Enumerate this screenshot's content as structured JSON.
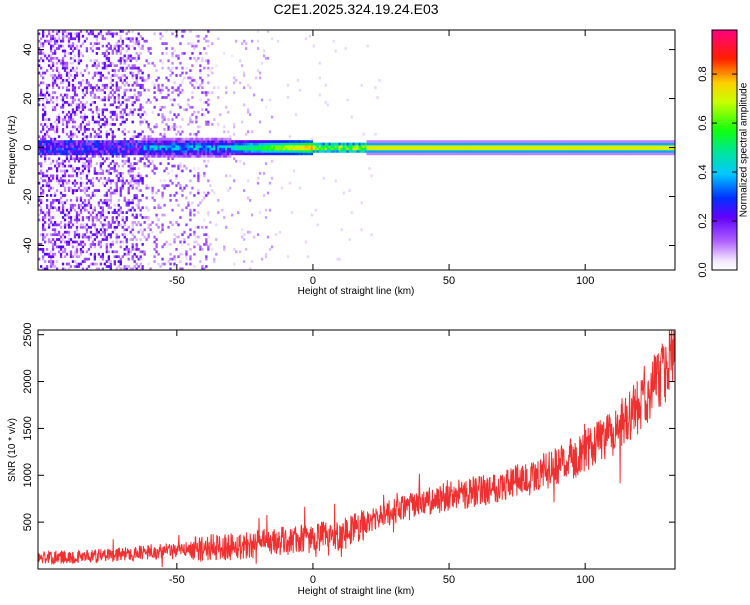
{
  "chart_data": [
    {
      "type": "heatmap",
      "title": "C2E1.2025.324.19.24.E03",
      "xlabel": "Height of straight line (km)",
      "ylabel": "Frequency (Hz)",
      "xlim": [
        -101,
        133
      ],
      "ylim": [
        -50,
        48
      ],
      "xticks": [
        -50,
        0,
        50,
        100
      ],
      "yticks": [
        -40,
        -20,
        0,
        20,
        40
      ],
      "colorbar": {
        "label": "Normalized spectral amplitude",
        "range": [
          0,
          0.98
        ],
        "ticks": [
          0.0,
          0.2,
          0.4,
          0.6,
          0.8
        ],
        "tick_labels": [
          "0.0",
          "0.2",
          "0.4",
          "0.6",
          "0.8"
        ],
        "colormap": "hsv-rainbow (white, violet, blue, cyan, green, yellow, red, magenta)"
      },
      "features": {
        "ridge_center_hz": 0,
        "ridge_peak_amplitude": 0.9,
        "noise_region_km": [
          -101,
          -38
        ],
        "grid": false
      }
    },
    {
      "type": "line",
      "title": "",
      "xlabel": "Height of straight line (km)",
      "ylabel": "SNR (10 * v/v)",
      "xlim": [
        -101,
        133
      ],
      "ylim": [
        0,
        2550
      ],
      "xticks": [
        -50,
        0,
        50,
        100
      ],
      "yticks": [
        500,
        1000,
        1500,
        2000,
        2500
      ],
      "series": [
        {
          "color": "#f03030",
          "x": [
            -101,
            -90,
            -80,
            -70,
            -60,
            -50,
            -40,
            -30,
            -20,
            -10,
            0,
            10,
            20,
            30,
            40,
            50,
            60,
            70,
            80,
            90,
            100,
            110,
            120,
            125,
            130,
            133
          ],
          "y": [
            120,
            130,
            140,
            160,
            180,
            200,
            220,
            240,
            270,
            300,
            330,
            370,
            500,
            620,
            700,
            770,
            830,
            900,
            980,
            1100,
            1250,
            1450,
            1750,
            1950,
            2150,
            2300
          ]
        }
      ]
    }
  ]
}
